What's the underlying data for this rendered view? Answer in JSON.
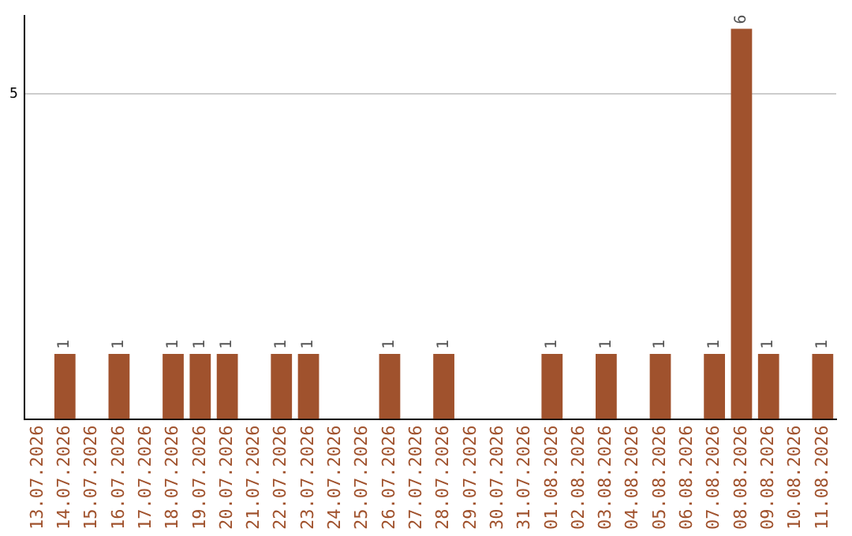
{
  "chart_data": {
    "type": "bar",
    "categories": [
      "13.07.2026",
      "14.07.2026",
      "15.07.2026",
      "16.07.2026",
      "17.07.2026",
      "18.07.2026",
      "19.07.2026",
      "20.07.2026",
      "21.07.2026",
      "22.07.2026",
      "23.07.2026",
      "24.07.2026",
      "25.07.2026",
      "26.07.2026",
      "27.07.2026",
      "28.07.2026",
      "29.07.2026",
      "30.07.2026",
      "31.07.2026",
      "01.08.2026",
      "02.08.2026",
      "03.08.2026",
      "04.08.2026",
      "05.08.2026",
      "06.08.2026",
      "07.08.2026",
      "08.08.2026",
      "09.08.2026",
      "10.08.2026",
      "11.08.2026"
    ],
    "values": [
      0,
      1,
      0,
      1,
      0,
      1,
      1,
      1,
      0,
      1,
      1,
      0,
      0,
      1,
      0,
      1,
      0,
      0,
      0,
      1,
      0,
      1,
      0,
      1,
      0,
      1,
      6,
      1,
      0,
      1
    ],
    "value_labels": [
      null,
      "1",
      null,
      "1",
      null,
      "1",
      "1",
      "1",
      null,
      "1",
      "1",
      null,
      null,
      "1",
      null,
      "1",
      null,
      null,
      null,
      "1",
      null,
      "1",
      null,
      "1",
      null,
      "1",
      "6",
      "1",
      null,
      "1"
    ],
    "color": "#a0522d",
    "ylim": [
      0,
      6.2
    ],
    "yticks": [
      5
    ],
    "grid": "y",
    "legend": false
  }
}
